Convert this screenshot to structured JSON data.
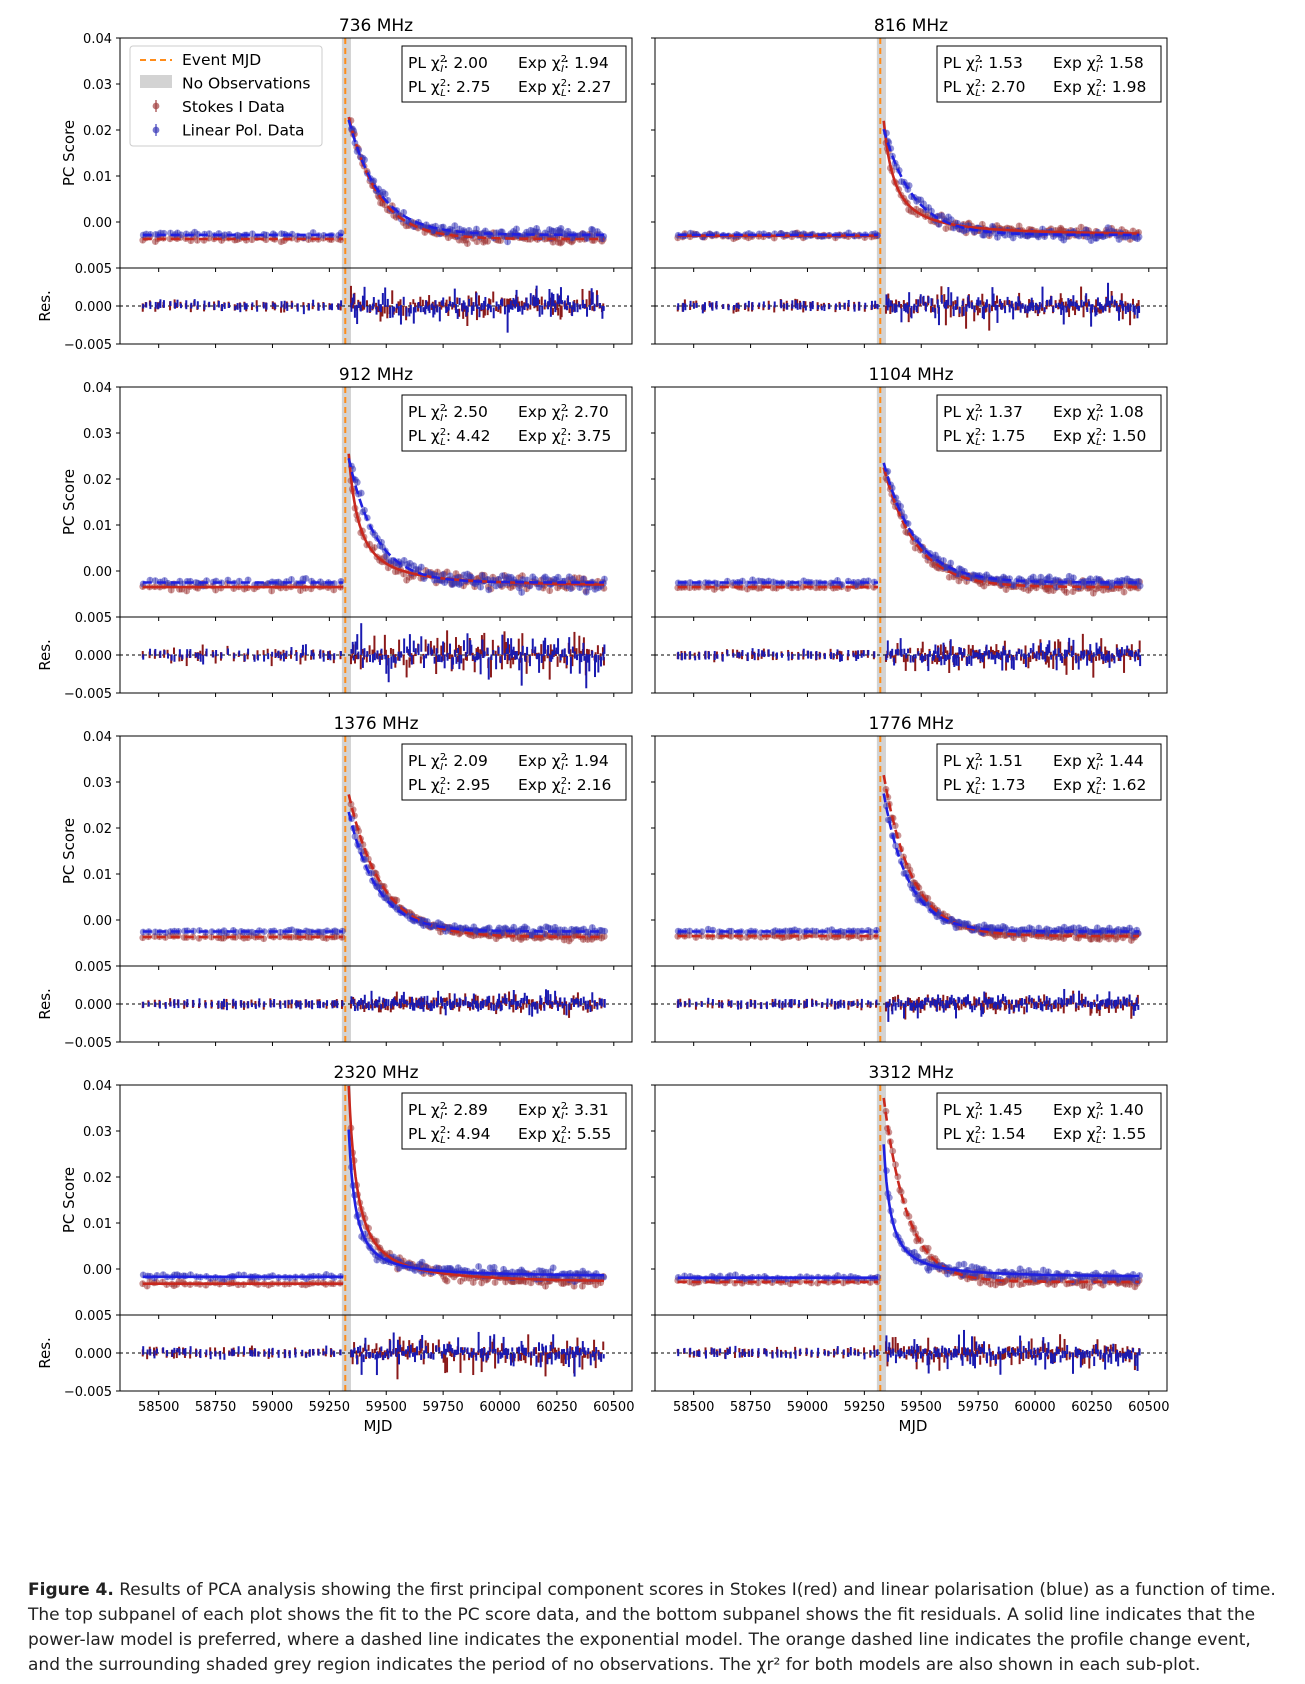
{
  "figure": {
    "caption_label": "Figure 4.",
    "caption_text": "Results of PCA analysis showing the first principal component scores in Stokes I(red) and linear polarisation (blue) as a function of time. The top subpanel of each plot shows the fit to the PC score data, and the bottom subpanel shows the fit residuals. A solid line indicates that the power-law model is preferred, where a dashed line indicates the exponential model. The orange dashed line indicates the profile change event, and the surrounding shaded grey region indicates the period of no observations. The χr² for both models are also shown in each sub-plot."
  },
  "colors": {
    "stokes_i": "#8b1a1a",
    "stokes_i_fill": "#a34040",
    "linear_pol": "#1a1ab0",
    "linear_pol_fill": "#3a3ab8",
    "event": "#ff8c1a",
    "no_obs": "#d3d3d3"
  },
  "chart_data": {
    "type": "scatter",
    "event_mjd": 59320,
    "no_obs_range": [
      59305,
      59345
    ],
    "x_ticks": [
      58500,
      58750,
      59000,
      59250,
      59500,
      59750,
      60000,
      60250,
      60500
    ],
    "x_tick_labels": [
      "58500",
      "58750",
      "59000",
      "59250",
      "59500",
      "59750",
      "60000",
      "60250",
      "60500"
    ],
    "xlim": [
      58330,
      60580
    ],
    "xlabel": "MJD",
    "ylabel_top": "PC Score",
    "ylabel_res": "Res.",
    "ylim_top": [
      -0.01,
      0.04
    ],
    "y_ticks_top": [
      0.0,
      0.01,
      0.02,
      0.03,
      0.04
    ],
    "y_tick_labels_top": [
      "0.00",
      "0.01",
      "0.02",
      "0.03",
      "0.04"
    ],
    "ylim_res": [
      -0.005,
      0.005
    ],
    "y_ticks_res": [
      -0.005,
      0.0,
      0.005
    ],
    "y_tick_labels_res": [
      "−0.005",
      "0.000",
      "0.005"
    ],
    "legend": {
      "position": "top-left of first panel",
      "items": [
        "Event MJD",
        "No Observations",
        "Stokes I Data",
        "Linear Pol. Data"
      ]
    },
    "panels": [
      {
        "title": "736 MHz",
        "chi": {
          "pl_i": "2.00",
          "exp_i": "1.94",
          "pl_l": "2.75",
          "exp_l": "2.27"
        },
        "i": {
          "pre": -0.0037,
          "amp": 0.0265,
          "tau": 130,
          "model": "exp"
        },
        "l": {
          "pre": -0.0028,
          "amp": 0.025,
          "tau": 135,
          "model": "exp"
        },
        "noise": 1
      },
      {
        "title": "816 MHz",
        "chi": {
          "pl_i": "1.53",
          "exp_i": "1.58",
          "pl_l": "2.70",
          "exp_l": "1.98"
        },
        "i": {
          "pre": -0.003,
          "amp": 0.025,
          "tau": 120,
          "model": "pl"
        },
        "l": {
          "pre": -0.0028,
          "amp": 0.023,
          "tau": 130,
          "model": "exp"
        },
        "noise": 1
      },
      {
        "title": "912 MHz",
        "chi": {
          "pl_i": "2.50",
          "exp_i": "2.70",
          "pl_l": "4.42",
          "exp_l": "3.75"
        },
        "i": {
          "pre": -0.0035,
          "amp": 0.029,
          "tau": 115,
          "model": "pl"
        },
        "l": {
          "pre": -0.0025,
          "amp": 0.027,
          "tau": 120,
          "model": "exp"
        },
        "noise": 1.4
      },
      {
        "title": "1104 MHz",
        "chi": {
          "pl_i": "1.37",
          "exp_i": "1.08",
          "pl_l": "1.75",
          "exp_l": "1.50"
        },
        "i": {
          "pre": -0.0035,
          "amp": 0.026,
          "tau": 140,
          "model": "exp"
        },
        "l": {
          "pre": -0.0025,
          "amp": 0.026,
          "tau": 140,
          "model": "exp"
        },
        "noise": 1
      },
      {
        "title": "1376 MHz",
        "chi": {
          "pl_i": "2.09",
          "exp_i": "1.94",
          "pl_l": "2.95",
          "exp_l": "2.16"
        },
        "i": {
          "pre": -0.0037,
          "amp": 0.031,
          "tau": 145,
          "model": "exp"
        },
        "l": {
          "pre": -0.0025,
          "amp": 0.026,
          "tau": 125,
          "model": "exp"
        },
        "noise": 0.7
      },
      {
        "title": "1776 MHz",
        "chi": {
          "pl_i": "1.51",
          "exp_i": "1.44",
          "pl_l": "1.73",
          "exp_l": "1.62"
        },
        "i": {
          "pre": -0.0035,
          "amp": 0.035,
          "tau": 125,
          "model": "exp"
        },
        "l": {
          "pre": -0.0025,
          "amp": 0.03,
          "tau": 110,
          "model": "exp"
        },
        "noise": 0.7
      },
      {
        "title": "2320 MHz",
        "chi": {
          "pl_i": "2.89",
          "exp_i": "3.31",
          "pl_l": "4.94",
          "exp_l": "5.55"
        },
        "i": {
          "pre": -0.0032,
          "amp": 0.043,
          "tau": 95,
          "model": "pl"
        },
        "l": {
          "pre": -0.0017,
          "amp": 0.032,
          "tau": 75,
          "model": "pl"
        },
        "noise": 1
      },
      {
        "title": "3312 MHz",
        "chi": {
          "pl_i": "1.45",
          "exp_i": "1.40",
          "pl_l": "1.54",
          "exp_l": "1.55"
        },
        "i": {
          "pre": -0.0028,
          "amp": 0.04,
          "tau": 105,
          "model": "exp"
        },
        "l": {
          "pre": -0.0019,
          "amp": 0.029,
          "tau": 80,
          "model": "pl"
        },
        "noise": 1
      }
    ]
  }
}
